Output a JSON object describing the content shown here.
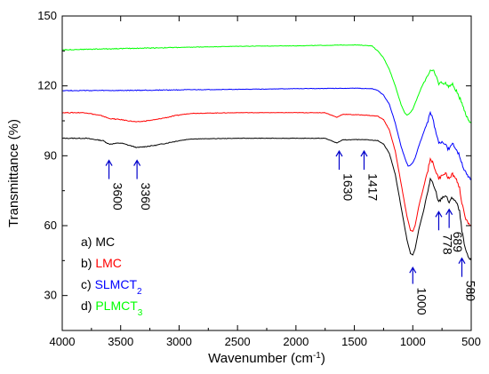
{
  "chart_data": {
    "type": "line",
    "xlabel": "Wavenumber (cm",
    "xlabel_sup": "-1",
    "xlabel_end": ")",
    "ylabel": "Transmittance (%)",
    "xlim": [
      4000,
      500
    ],
    "ylim": [
      15,
      150
    ],
    "x_ticks": [
      4000,
      3500,
      3000,
      2500,
      2000,
      1500,
      1000,
      500
    ],
    "y_ticks": [
      30,
      60,
      90,
      120,
      150
    ],
    "x_tick_labels": [
      "4000",
      "3500",
      "3000",
      "2500",
      "2000",
      "1500",
      "1000",
      "500"
    ],
    "y_tick_labels": [
      "30",
      "60",
      "90",
      "120",
      "150"
    ],
    "legend_placement": "bottom-left",
    "series": [
      {
        "name": "a) MC",
        "label_prefix": "a) ",
        "label_main": "MC",
        "label_sub": "",
        "color": "#000000",
        "points": [
          [
            4000,
            97.5
          ],
          [
            3800,
            97.5
          ],
          [
            3650,
            96.5
          ],
          [
            3600,
            95.0
          ],
          [
            3500,
            95.5
          ],
          [
            3360,
            93.5
          ],
          [
            3200,
            94.5
          ],
          [
            3000,
            96.5
          ],
          [
            2900,
            97.2
          ],
          [
            2500,
            97.5
          ],
          [
            2000,
            97.5
          ],
          [
            1750,
            97.5
          ],
          [
            1650,
            95.5
          ],
          [
            1600,
            96.8
          ],
          [
            1420,
            97.0
          ],
          [
            1300,
            96.5
          ],
          [
            1250,
            95.0
          ],
          [
            1200,
            91.0
          ],
          [
            1150,
            82.0
          ],
          [
            1100,
            68.0
          ],
          [
            1050,
            54.0
          ],
          [
            1020,
            48.0
          ],
          [
            1000,
            47.5
          ],
          [
            980,
            50.0
          ],
          [
            950,
            58.0
          ],
          [
            900,
            68.0
          ],
          [
            870,
            75.0
          ],
          [
            850,
            80.0
          ],
          [
            830,
            78.0
          ],
          [
            800,
            74.0
          ],
          [
            778,
            70.0
          ],
          [
            750,
            72.0
          ],
          [
            720,
            73.0
          ],
          [
            700,
            71.0
          ],
          [
            689,
            70.0
          ],
          [
            660,
            72.0
          ],
          [
            640,
            71.0
          ],
          [
            620,
            69.0
          ],
          [
            600,
            66.0
          ],
          [
            580,
            58.0
          ],
          [
            560,
            52.0
          ],
          [
            540,
            48.0
          ],
          [
            520,
            46.0
          ],
          [
            500,
            45.0
          ]
        ]
      },
      {
        "name": "b) LMC",
        "label_prefix": "b) ",
        "label_main": "LMC",
        "label_sub": "",
        "color": "#ff0000",
        "points": [
          [
            4000,
            108.5
          ],
          [
            3800,
            108.5
          ],
          [
            3650,
            107.0
          ],
          [
            3600,
            106.0
          ],
          [
            3500,
            105.5
          ],
          [
            3360,
            104.5
          ],
          [
            3200,
            105.5
          ],
          [
            3000,
            107.5
          ],
          [
            2900,
            108.2
          ],
          [
            2500,
            108.5
          ],
          [
            2000,
            108.5
          ],
          [
            1750,
            108.5
          ],
          [
            1650,
            106.5
          ],
          [
            1600,
            107.8
          ],
          [
            1420,
            107.5
          ],
          [
            1300,
            107.0
          ],
          [
            1250,
            105.5
          ],
          [
            1200,
            101.0
          ],
          [
            1150,
            92.0
          ],
          [
            1100,
            78.0
          ],
          [
            1050,
            64.0
          ],
          [
            1020,
            58.0
          ],
          [
            1000,
            57.5
          ],
          [
            980,
            60.0
          ],
          [
            950,
            68.0
          ],
          [
            900,
            78.0
          ],
          [
            870,
            84.0
          ],
          [
            850,
            89.0
          ],
          [
            830,
            87.0
          ],
          [
            800,
            83.0
          ],
          [
            778,
            80.0
          ],
          [
            750,
            82.0
          ],
          [
            720,
            82.5
          ],
          [
            700,
            81.0
          ],
          [
            689,
            80.0
          ],
          [
            660,
            82.0
          ],
          [
            640,
            81.0
          ],
          [
            620,
            79.0
          ],
          [
            600,
            76.0
          ],
          [
            580,
            70.0
          ],
          [
            560,
            65.0
          ],
          [
            540,
            62.0
          ],
          [
            520,
            61.0
          ],
          [
            500,
            60.0
          ]
        ]
      },
      {
        "name": "c) SLMCT2",
        "label_prefix": "c) ",
        "label_main": "SLMCT",
        "label_sub": "2",
        "color": "#0000ff",
        "points": [
          [
            4000,
            118.0
          ],
          [
            3500,
            118.0
          ],
          [
            3000,
            118.3
          ],
          [
            2500,
            118.5
          ],
          [
            2000,
            118.8
          ],
          [
            1500,
            119.0
          ],
          [
            1350,
            118.8
          ],
          [
            1300,
            118.0
          ],
          [
            1250,
            116.0
          ],
          [
            1200,
            112.0
          ],
          [
            1150,
            104.0
          ],
          [
            1100,
            94.0
          ],
          [
            1060,
            88.0
          ],
          [
            1040,
            85.5
          ],
          [
            1020,
            86.0
          ],
          [
            1000,
            87.0
          ],
          [
            980,
            89.0
          ],
          [
            950,
            94.0
          ],
          [
            900,
            101.0
          ],
          [
            870,
            105.0
          ],
          [
            850,
            108.0
          ],
          [
            830,
            106.0
          ],
          [
            800,
            100.0
          ],
          [
            778,
            95.0
          ],
          [
            750,
            96.0
          ],
          [
            720,
            95.5
          ],
          [
            700,
            93.0
          ],
          [
            689,
            92.5
          ],
          [
            660,
            95.0
          ],
          [
            640,
            94.0
          ],
          [
            620,
            92.0
          ],
          [
            600,
            90.0
          ],
          [
            580,
            87.0
          ],
          [
            560,
            84.0
          ],
          [
            540,
            82.0
          ],
          [
            520,
            80.5
          ],
          [
            500,
            80.0
          ]
        ]
      },
      {
        "name": "d) PLMCT3",
        "label_prefix": "d) ",
        "label_main": "PLMCT",
        "label_sub": "3",
        "color": "#00ff00",
        "points": [
          [
            4000,
            135.5
          ],
          [
            3500,
            136.0
          ],
          [
            3000,
            136.5
          ],
          [
            2500,
            137.0
          ],
          [
            2000,
            137.2
          ],
          [
            1500,
            137.6
          ],
          [
            1350,
            137.2
          ],
          [
            1300,
            135.0
          ],
          [
            1250,
            132.0
          ],
          [
            1200,
            127.0
          ],
          [
            1150,
            120.0
          ],
          [
            1100,
            112.0
          ],
          [
            1070,
            108.5
          ],
          [
            1050,
            107.5
          ],
          [
            1030,
            108.0
          ],
          [
            1000,
            110.0
          ],
          [
            960,
            115.0
          ],
          [
            920,
            120.0
          ],
          [
            880,
            124.0
          ],
          [
            850,
            126.5
          ],
          [
            820,
            126.0
          ],
          [
            800,
            124.0
          ],
          [
            778,
            121.0
          ],
          [
            750,
            121.5
          ],
          [
            720,
            121.0
          ],
          [
            700,
            120.0
          ],
          [
            689,
            120.0
          ],
          [
            660,
            120.5
          ],
          [
            640,
            119.0
          ],
          [
            620,
            117.0
          ],
          [
            600,
            115.0
          ],
          [
            580,
            113.0
          ],
          [
            560,
            110.0
          ],
          [
            540,
            107.0
          ],
          [
            520,
            105.0
          ],
          [
            500,
            104.0
          ]
        ]
      }
    ],
    "annotations": [
      {
        "label": "3600",
        "x": 3600,
        "arrow_tip_y": 88,
        "arrow_base_y": 80
      },
      {
        "label": "3360",
        "x": 3360,
        "arrow_tip_y": 88,
        "arrow_base_y": 80
      },
      {
        "label": "1630",
        "x": 1630,
        "arrow_tip_y": 92,
        "arrow_base_y": 84
      },
      {
        "label": "1417",
        "x": 1417,
        "arrow_tip_y": 92,
        "arrow_base_y": 84
      },
      {
        "label": "1000",
        "x": 1000,
        "arrow_tip_y": 42,
        "arrow_base_y": 35
      },
      {
        "label": "778",
        "x": 778,
        "arrow_tip_y": 66,
        "arrow_base_y": 58
      },
      {
        "label": "689",
        "x": 689,
        "arrow_tip_y": 67,
        "arrow_base_y": 59
      },
      {
        "label": "580",
        "x": 580,
        "arrow_tip_y": 46,
        "arrow_base_y": 38
      }
    ]
  }
}
